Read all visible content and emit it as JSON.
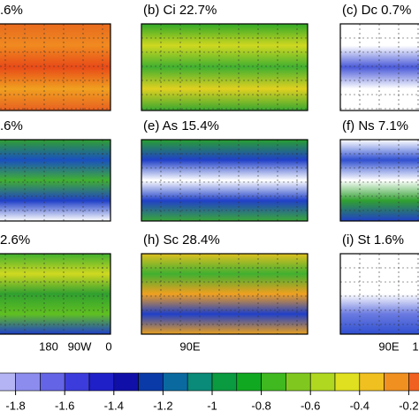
{
  "panels": [
    {
      "title": ".6%"
    },
    {
      "title": "(b) Ci 22.7%"
    },
    {
      "title": "(c) Dc 0.7%"
    },
    {
      "title": ".6%"
    },
    {
      "title": "(e) As 15.4%"
    },
    {
      "title": "(f) Ns 7.1%"
    },
    {
      "title": "2.6%",
      "x_labels": [
        "180",
        "90W",
        "0"
      ]
    },
    {
      "title": "(h) Sc 28.4%",
      "x_labels": [
        "90E"
      ]
    },
    {
      "title": "(i) St 1.6%",
      "x_labels": [
        "90E",
        "1"
      ]
    }
  ],
  "colorbar": {
    "lim": [
      -2,
      0
    ],
    "ticks": [
      -1.8,
      -1.6,
      -1.4,
      -1.2,
      -1,
      -0.8,
      -0.6,
      -0.4,
      -0.2
    ],
    "colors": [
      "#d8d8f8",
      "#b4b4f4",
      "#8c8cee",
      "#6464e6",
      "#3c3cdc",
      "#2020c8",
      "#1010a8",
      "#0a3aa8",
      "#0a6aa0",
      "#0a8a78",
      "#0a9a40",
      "#10a820",
      "#40b820",
      "#80c820",
      "#b0d820",
      "#e0e020",
      "#f0c020",
      "#f09020",
      "#f06020",
      "#e03020"
    ]
  }
}
